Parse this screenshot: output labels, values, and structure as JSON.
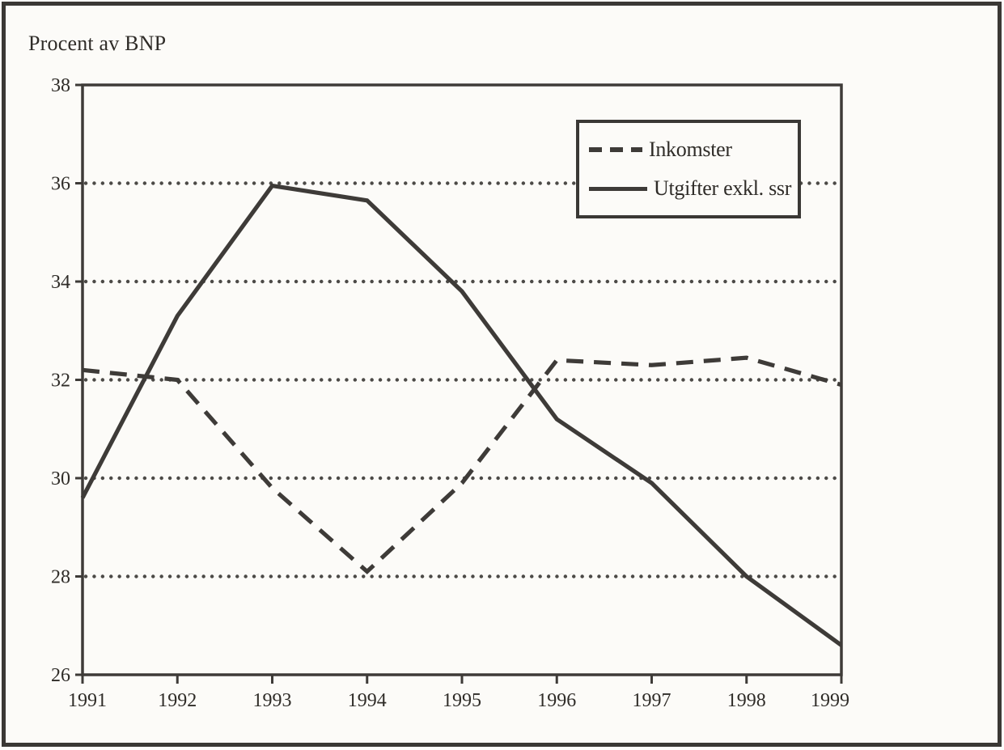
{
  "figure": {
    "title": "Procent av BNP"
  },
  "colors": {
    "ink": "#3e3b38",
    "text": "#2f2c28",
    "paper": "#fcfbf8",
    "frame_border": "#3a3835"
  },
  "legend": {
    "items": [
      {
        "label": "Inkomster",
        "line_style": "dashed"
      },
      {
        "label": "Utgifter exkl. ssr",
        "line_style": "solid"
      }
    ]
  },
  "chart_data": {
    "type": "line",
    "title": "Procent av BNP",
    "x": [
      1991,
      1992,
      1993,
      1994,
      1995,
      1996,
      1997,
      1998,
      1999
    ],
    "series": [
      {
        "name": "Inkomster",
        "style": "dashed",
        "values": [
          32.2,
          32.0,
          29.8,
          28.1,
          29.9,
          32.4,
          32.3,
          32.45,
          31.9
        ]
      },
      {
        "name": "Utgifter exkl. ssr",
        "style": "solid",
        "values": [
          29.6,
          33.3,
          35.95,
          35.65,
          33.8,
          31.2,
          29.9,
          28.0,
          26.6
        ]
      }
    ],
    "xlabel": "",
    "ylabel": "Procent av BNP",
    "ylim": [
      26,
      38
    ],
    "yticks": [
      26,
      28,
      30,
      32,
      34,
      36,
      38
    ],
    "gridlines_at": [
      28,
      30,
      32,
      34,
      36
    ],
    "grid_style": "dotted-horizontal",
    "legend_position": "upper-right"
  }
}
